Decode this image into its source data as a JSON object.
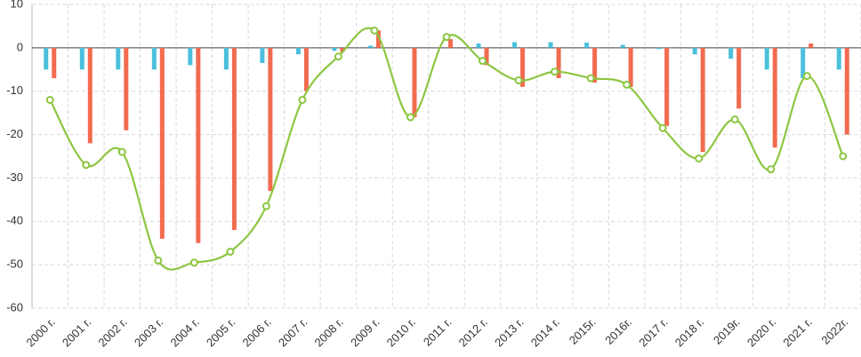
{
  "chart_data": {
    "type": "bar-line",
    "categories": [
      "2000 г.",
      "2001 г.",
      "2002 г.",
      "2003 г.",
      "2004 г.",
      "2005 г.",
      "2006 г.",
      "2007 г.",
      "2008 г.",
      "2009 г.",
      "2010 г.",
      "2011 г.",
      "2012 г.",
      "2013 г.",
      "2014 г.",
      "2015г.",
      "2016г.",
      "2017 г.",
      "2018 г.",
      "2019г.",
      "2020 г.",
      "2021 г.",
      "2022г."
    ],
    "series": [
      {
        "type": "bar",
        "color": "#4bc0dc",
        "values": [
          -5,
          -5,
          -5,
          -5,
          -4,
          -5,
          -3.5,
          -1.5,
          -0.7,
          0.5,
          0,
          0,
          1,
          1.3,
          1.3,
          1.2,
          0.7,
          -0.3,
          -1.5,
          -2.5,
          -5,
          -7,
          -5
        ]
      },
      {
        "type": "bar",
        "color": "#f26b50",
        "values": [
          -7,
          -22,
          -19,
          -44,
          -45,
          -42,
          -33,
          -10,
          -1,
          4,
          -16,
          2,
          -4,
          -9,
          -7,
          -8,
          -9,
          -18,
          -24,
          -14,
          -23,
          1,
          -20
        ]
      },
      {
        "type": "line",
        "color": "#8dc641",
        "values": [
          -12,
          -27,
          -24,
          -49,
          -49.5,
          -47,
          -36.5,
          -12,
          -2,
          4,
          -16,
          2.5,
          -3,
          -7.5,
          -5.5,
          -7,
          -8.5,
          -18.5,
          -25.5,
          -16.5,
          -28,
          -6.5,
          -25
        ]
      }
    ],
    "ylim": [
      -60,
      10
    ],
    "yticks": [
      10,
      0,
      -10,
      -20,
      -30,
      -40,
      -50,
      -60
    ],
    "grid": true
  }
}
